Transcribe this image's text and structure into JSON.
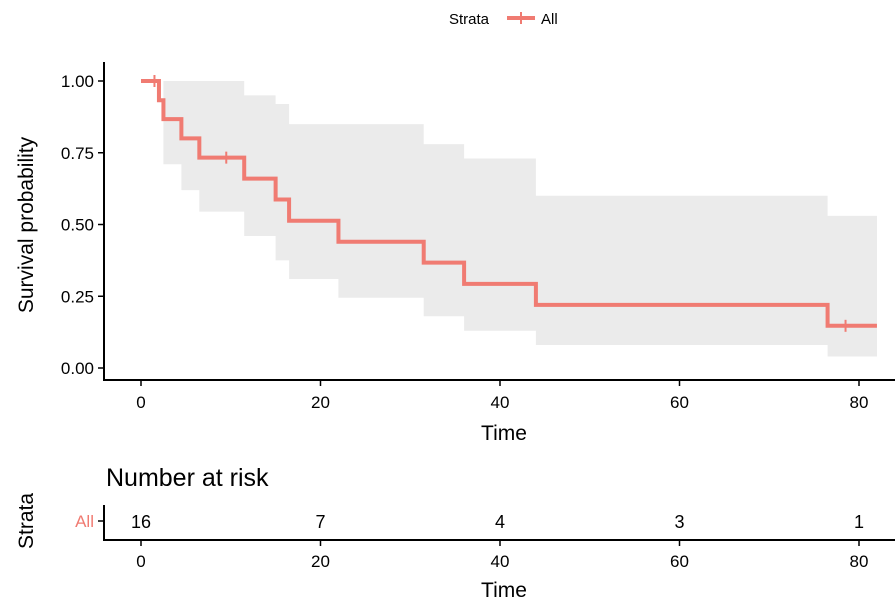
{
  "chart_data": [
    {
      "type": "line",
      "subtype": "kaplan-meier",
      "title": "",
      "xlabel": "Time",
      "ylabel": "Survival probability",
      "xlim": [
        0,
        82
      ],
      "ylim": [
        0,
        1
      ],
      "x_ticks": [
        0,
        20,
        40,
        60,
        80
      ],
      "y_ticks": [
        0,
        0.25,
        0.5,
        0.75,
        1.0
      ],
      "y_tick_labels": [
        "0.00",
        "0.25",
        "0.50",
        "0.75",
        "1.00"
      ],
      "grid": false,
      "legend": {
        "position": "top",
        "title": "Strata",
        "entries": [
          "All"
        ]
      },
      "series": [
        {
          "name": "All",
          "color": "#f07b72",
          "steps": [
            {
              "x": 0,
              "y": 1.0
            },
            {
              "x": 2,
              "y": 0.933
            },
            {
              "x": 2.5,
              "y": 0.867
            },
            {
              "x": 4.5,
              "y": 0.8
            },
            {
              "x": 6.5,
              "y": 0.733
            },
            {
              "x": 11.5,
              "y": 0.66
            },
            {
              "x": 15,
              "y": 0.587
            },
            {
              "x": 16.5,
              "y": 0.513
            },
            {
              "x": 22,
              "y": 0.44
            },
            {
              "x": 31.5,
              "y": 0.367
            },
            {
              "x": 36,
              "y": 0.293
            },
            {
              "x": 44,
              "y": 0.22
            },
            {
              "x": 76.5,
              "y": 0.147
            }
          ],
          "x_end": 82,
          "censored": [
            {
              "x": 1.5,
              "y": 1.0
            },
            {
              "x": 9.5,
              "y": 0.733
            },
            {
              "x": 78.5,
              "y": 0.147
            }
          ],
          "ci": [
            {
              "x": 0,
              "lower": 1.0,
              "upper": 1.0
            },
            {
              "x": 2.5,
              "lower": 0.71,
              "upper": 1.0
            },
            {
              "x": 4.5,
              "lower": 0.62,
              "upper": 1.0
            },
            {
              "x": 6.5,
              "lower": 0.545,
              "upper": 1.0
            },
            {
              "x": 11.5,
              "lower": 0.46,
              "upper": 0.95
            },
            {
              "x": 15,
              "lower": 0.375,
              "upper": 0.92
            },
            {
              "x": 16.5,
              "lower": 0.31,
              "upper": 0.85
            },
            {
              "x": 22,
              "lower": 0.245,
              "upper": 0.85
            },
            {
              "x": 31.5,
              "lower": 0.18,
              "upper": 0.78
            },
            {
              "x": 36,
              "lower": 0.13,
              "upper": 0.73
            },
            {
              "x": 44,
              "lower": 0.08,
              "upper": 0.6
            },
            {
              "x": 76.5,
              "lower": 0.04,
              "upper": 0.53
            }
          ]
        }
      ]
    },
    {
      "type": "table",
      "title": "Number at risk",
      "ylabel": "Strata",
      "xlabel": "Time",
      "x_ticks": [
        0,
        20,
        40,
        60,
        80
      ],
      "rows": [
        {
          "name": "All",
          "color": "#f07b72",
          "times": [
            0,
            20,
            40,
            60,
            80
          ],
          "values": [
            "16",
            "7",
            "4",
            "3",
            "1"
          ]
        }
      ]
    }
  ]
}
